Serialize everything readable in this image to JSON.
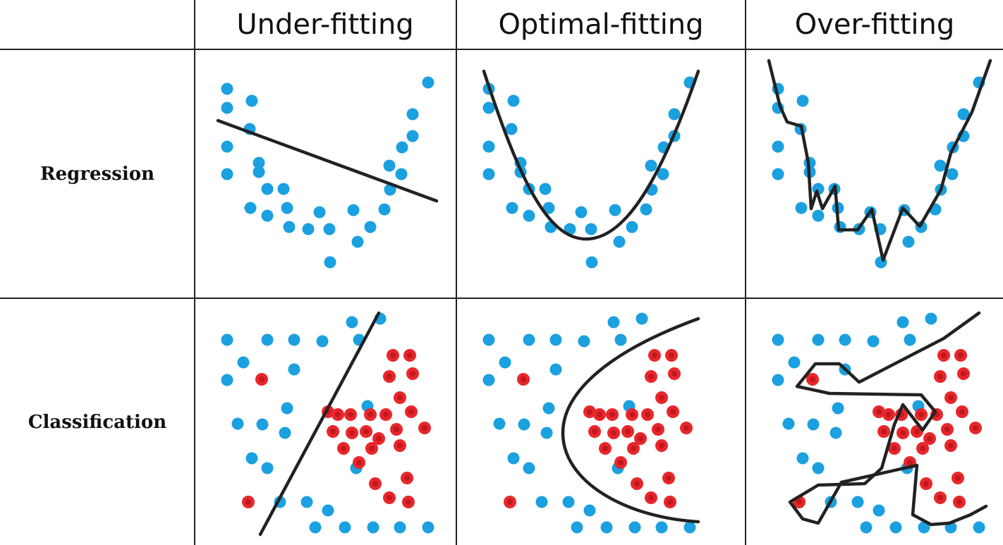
{
  "columns": [
    "Under-fitting",
    "Optimal-fitting",
    "Over-fitting"
  ],
  "rows": [
    "Regression",
    "Classification"
  ],
  "colors": {
    "blue": "#1ba0e0",
    "red": "#e8262b",
    "line": "#222222"
  }
}
